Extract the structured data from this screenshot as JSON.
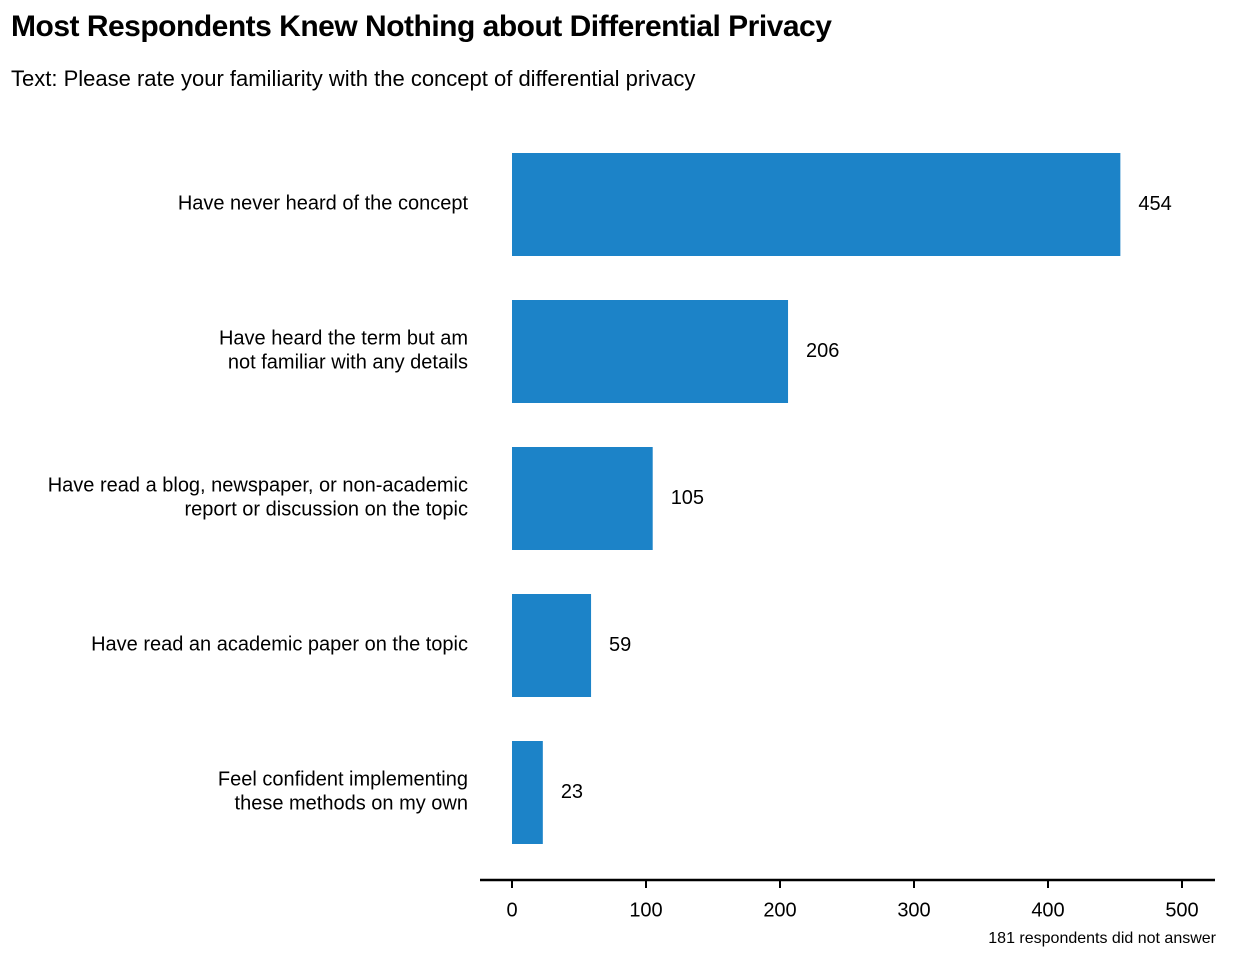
{
  "chart_data": {
    "type": "bar",
    "orientation": "horizontal",
    "title": "Most Respondents Knew Nothing about Differential Privacy",
    "subtitle": "Text: Please rate your familiarity with the concept of differential privacy",
    "caption": "181 respondents did not answer",
    "categories": [
      [
        "Have never heard of the concept"
      ],
      [
        "Have heard the term but am",
        "not familiar with any details"
      ],
      [
        "Have read a blog, newspaper, or non-academic",
        "report or discussion on the topic"
      ],
      [
        "Have read an academic paper on the topic"
      ],
      [
        "Feel confident implementing",
        "these methods on my own"
      ]
    ],
    "values": [
      454,
      206,
      105,
      59,
      23
    ],
    "xlim": [
      0,
      500
    ],
    "xticks": [
      0,
      100,
      200,
      300,
      400,
      500
    ],
    "xlabel": "",
    "ylabel": "",
    "grid": false,
    "bar_color": "#1c83c8"
  }
}
